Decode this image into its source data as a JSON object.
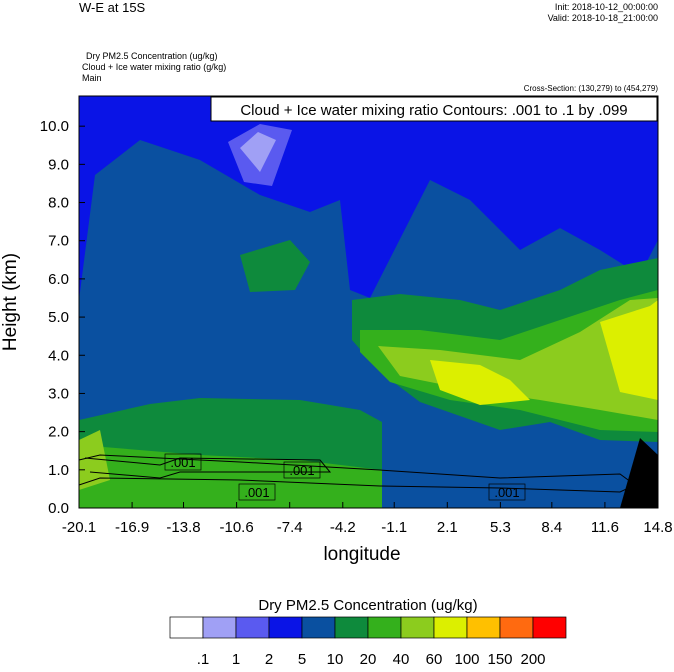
{
  "chart_data": {
    "type": "contour",
    "title": "W-E at 15S",
    "init": "Init: 2018-10-12_00:00:00",
    "valid": "Valid: 2018-10-18_21:00:00",
    "field_labels": [
      "Dry PM2.5 Concentration   (ug/kg)",
      "Cloud + Ice water mixing ratio   (g/kg)",
      "Main"
    ],
    "cross_section": "Cross-Section: (130,279) to (454,279)",
    "contour_info": "Cloud + Ice water mixing ratio Contours: .001 to .1 by .099",
    "contour_labels": [
      ".001",
      ".001",
      ".001",
      ".001"
    ],
    "xlabel": "longitude",
    "ylabel": "Height (km)",
    "xlim": [
      -20.1,
      14.8
    ],
    "xticks": [
      -20.1,
      -16.9,
      -13.8,
      -10.6,
      -7.4,
      -4.2,
      -1.1,
      2.1,
      5.3,
      8.4,
      11.6,
      14.8
    ],
    "ylim": [
      0,
      10.79
    ],
    "yticks": [
      {
        "value": 0,
        "label": "0.0"
      },
      {
        "value": 1,
        "label": "1.0"
      },
      {
        "value": 2,
        "label": "2.0"
      },
      {
        "value": 3,
        "label": "3.0"
      },
      {
        "value": 4,
        "label": "4.0"
      },
      {
        "value": 5,
        "label": "5.0"
      },
      {
        "value": 6,
        "label": "6.0"
      },
      {
        "value": 7,
        "label": "7.0"
      },
      {
        "value": 8,
        "label": "8.0"
      },
      {
        "value": 9,
        "label": "9.0"
      },
      {
        "value": 10,
        "label": "10.0"
      }
    ],
    "colorbar": {
      "title": "Dry PM2.5 Concentration  (ug/kg)",
      "levels": [
        {
          "value": 0.1,
          "label": ".1"
        },
        1,
        2,
        5,
        10,
        20,
        40,
        60,
        100,
        150,
        200
      ],
      "colors": [
        "#ffffff",
        "#a0a0f5",
        "#5a5af0",
        "#0a14e6",
        "#0a50a0",
        "#0e8a3c",
        "#34b01c",
        "#8ccc1e",
        "#dcef00",
        "#ffc000",
        "#ff6a10",
        "#ff0000"
      ]
    }
  }
}
